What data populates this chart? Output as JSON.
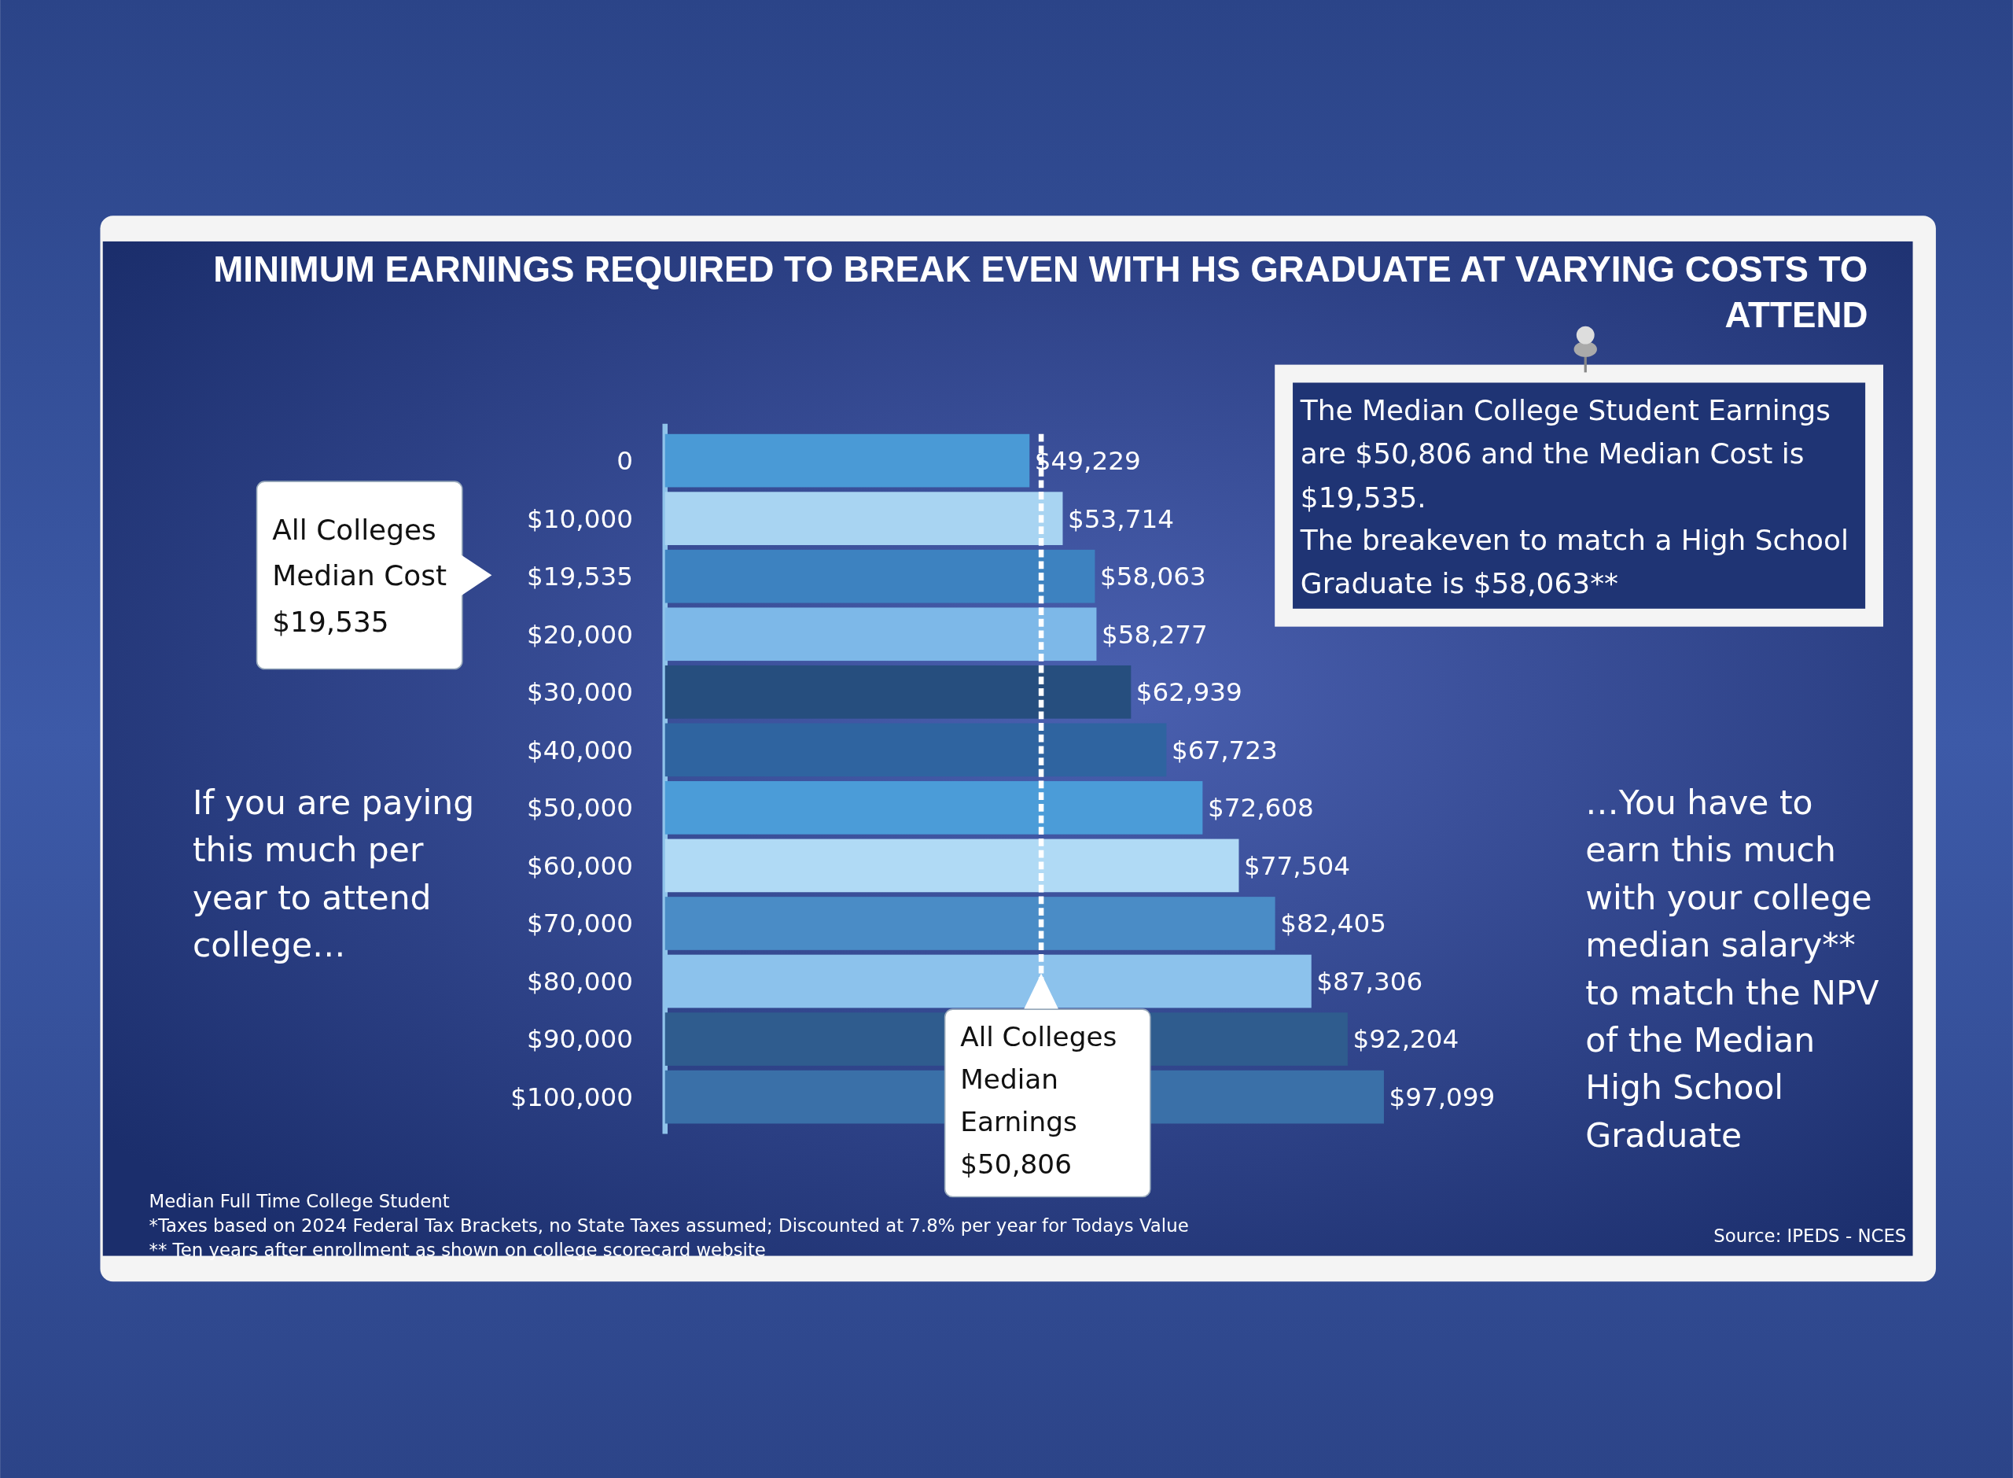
{
  "chart_data": {
    "type": "bar",
    "orientation": "horizontal",
    "title": "MINIMUM EARNINGS REQUIRED TO BREAK EVEN WITH HS GRADUATE AT VARYING COSTS TO ATTEND",
    "categories": [
      "0",
      "$10,000",
      "$19,535",
      "$20,000",
      "$30,000",
      "$40,000",
      "$50,000",
      "$60,000",
      "$70,000",
      "$80,000",
      "$90,000",
      "$100,000"
    ],
    "values": [
      49229,
      53714,
      58063,
      58277,
      62939,
      67723,
      72608,
      77504,
      82405,
      87306,
      92204,
      97099
    ],
    "colors": [
      "#4a9ad6",
      "#a8d4f2",
      "#3d82c0",
      "#7db8e8",
      "#264e7e",
      "#2f64a0",
      "#4b9cd8",
      "#b0daf5",
      "#4a8cc6",
      "#8cc2ec",
      "#2f5c8e",
      "#3a70a8"
    ],
    "value_labels": [
      "$49,229",
      "$53,714",
      "$58,063",
      "$58,277",
      "$62,939",
      "$67,723",
      "$72,608",
      "$77,504",
      "$82,405",
      "$87,306",
      "$92,204",
      "$97,099"
    ],
    "ref_lines": [
      {
        "axis": "x",
        "value": 50806,
        "label": "All Colleges Median Earnings $50,806",
        "color": "#ffffff",
        "line_style": "dashed"
      }
    ],
    "annotations": [
      "All Colleges Median Cost $19,535",
      "The Median College Student Earnings are $50,806 and the Median Cost is $19,535.",
      "The breakeven to match a High School Graduate is $58,063**",
      "If you are paying this much per year to attend college…",
      "…You have to earn this much with your college median salary** to match the NPV of the Median High School Graduate",
      "Median Full Time College Student",
      "*Taxes based on 2024 Federal Tax Brackets, no State Taxes assumed; Discounted at 7.8% per year for Todays Value",
      "** Ten years after enrollment as shown on college scorecard website",
      "Source: IPEDS - NCES"
    ]
  }
}
